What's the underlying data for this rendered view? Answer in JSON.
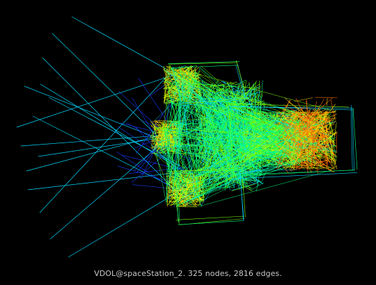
{
  "caption": "VDOL@spaceStation_2. 325 nodes, 2816 edges.",
  "graph": {
    "background": "#000000",
    "edge_palette": [
      "#00d8ff",
      "#1a3cff",
      "#00ff7a",
      "#7cff00",
      "#d8ff00",
      "#ffcc00",
      "#ff6a00"
    ],
    "caption_color": "#c8c8c8"
  }
}
